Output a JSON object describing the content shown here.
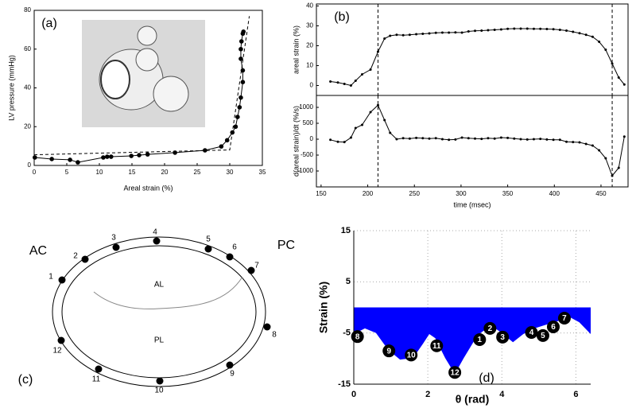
{
  "chart_data": [
    {
      "type": "line",
      "panel_label": "(a)",
      "xlabel": "Areal strain (%)",
      "ylabel": "LV pressure (mmHg)",
      "xlim": [
        0,
        35
      ],
      "xticks": [
        0,
        5,
        10,
        15,
        20,
        25,
        30,
        35
      ],
      "ylim": [
        0,
        80
      ],
      "yticks": [
        0,
        20,
        40,
        60,
        80
      ],
      "series": [
        {
          "color": "#000000",
          "marker": true,
          "x": [
            0.1,
            2.7,
            5.5,
            6.7,
            10.6,
            11.2,
            11.8,
            14.9,
            16.1,
            17.4,
            21.6,
            26.2,
            28.7,
            29.6,
            30.4,
            30.9,
            31.2,
            31.5,
            31.7,
            32,
            32,
            31.7,
            31.7,
            31.8,
            32,
            32.1
          ],
          "values": [
            4.1,
            3.3,
            2.9,
            1.6,
            4.1,
            4.5,
            4.5,
            4.9,
            5.3,
            5.7,
            6.6,
            7.8,
            9.8,
            13,
            17,
            20,
            25,
            30,
            35,
            43,
            49,
            55,
            60,
            64,
            68,
            69
          ]
        },
        {
          "color": "#000000",
          "dash": true,
          "x": [
            0,
            30,
            33
          ],
          "values": [
            5.5,
            8,
            77
          ]
        }
      ]
    },
    {
      "type": "line",
      "panel_label": "(b)",
      "ylabel": "areal strain (%)",
      "xlim": [
        145,
        479
      ],
      "ylim": [
        -5,
        41
      ],
      "yticks": [
        0,
        10,
        20,
        30,
        40
      ],
      "vlines": [
        211,
        462
      ],
      "series": [
        {
          "color": "#000000",
          "marker": true,
          "x": [
            160,
            168,
            175,
            182,
            187,
            194,
            203,
            211,
            218,
            224,
            231,
            238,
            245,
            252,
            259,
            266,
            273,
            280,
            287,
            294,
            301,
            308,
            315,
            322,
            329,
            336,
            343,
            350,
            357,
            364,
            371,
            378,
            385,
            392,
            399,
            406,
            413,
            420,
            427,
            434,
            441,
            448,
            455,
            462,
            469,
            475
          ],
          "values": [
            2,
            1.5,
            0.8,
            0,
            2.4,
            5.6,
            8,
            17,
            23.6,
            25,
            25.5,
            25.3,
            25.5,
            25.8,
            26,
            26.2,
            26.5,
            26.6,
            26.6,
            26.7,
            26.6,
            27.2,
            27.5,
            27.6,
            27.8,
            28,
            28.2,
            28.5,
            28.6,
            28.6,
            28.6,
            28.5,
            28.5,
            28.4,
            28.3,
            28,
            27.6,
            27,
            26.3,
            25.5,
            24.5,
            22,
            18,
            11,
            4,
            0.5
          ]
        }
      ]
    },
    {
      "type": "line",
      "xlabel": "time (msec)",
      "ylabel": "d(areal strain)/dt (%/s)",
      "xlim": [
        145,
        479
      ],
      "xticks": [
        150,
        200,
        250,
        300,
        350,
        400,
        450
      ],
      "ylim": [
        -1500,
        1375
      ],
      "yticks": [
        -1000,
        -500,
        0,
        500,
        1000
      ],
      "vlines": [
        211,
        462
      ],
      "series": [
        {
          "color": "#000000",
          "marker": true,
          "x": [
            160,
            168,
            175,
            182,
            187,
            194,
            203,
            211,
            218,
            224,
            231,
            238,
            245,
            252,
            259,
            266,
            273,
            280,
            287,
            294,
            301,
            308,
            315,
            322,
            329,
            336,
            343,
            350,
            357,
            364,
            371,
            378,
            385,
            392,
            399,
            406,
            413,
            420,
            427,
            434,
            441,
            448,
            455,
            462,
            469,
            475
          ],
          "values": [
            -20,
            -80,
            -90,
            50,
            350,
            450,
            850,
            1070,
            600,
            200,
            0,
            30,
            20,
            40,
            30,
            20,
            30,
            0,
            -20,
            -10,
            50,
            30,
            20,
            10,
            30,
            20,
            50,
            40,
            20,
            0,
            -10,
            0,
            10,
            -10,
            -20,
            -20,
            -80,
            -90,
            -100,
            -150,
            -200,
            -350,
            -600,
            -1150,
            -900,
            80
          ]
        }
      ]
    },
    {
      "type": "area",
      "panel_label": "(d)",
      "xlabel": "θ (rad)",
      "ylabel": "Strain (%)",
      "xlim": [
        0,
        6.4
      ],
      "xticks": [
        0,
        2,
        4,
        6
      ],
      "ylim": [
        -15,
        15
      ],
      "yticks": [
        -15,
        -5,
        5,
        15
      ],
      "grid": true,
      "series": [
        {
          "color": "#0000ff",
          "x": [
            0,
            0.3,
            0.6,
            0.93,
            1.25,
            1.6,
            1.87,
            2.04,
            2.2,
            2.47,
            2.73,
            2.97,
            3.23,
            3.44,
            3.72,
            3.98,
            4.3,
            4.58,
            4.88,
            5.23,
            5.55,
            5.81,
            6.09,
            6.4
          ],
          "values": [
            -5.2,
            -4.1,
            -5,
            -8.3,
            -10.2,
            -9.9,
            -7.1,
            -5.2,
            -6,
            -9.9,
            -13,
            -9.9,
            -6.8,
            -4.9,
            -3.6,
            -4.9,
            -6.8,
            -5.2,
            -4.1,
            -3.3,
            -2.6,
            -1.8,
            -2.9,
            -5.2
          ]
        }
      ],
      "points": {
        "labels": [
          "8",
          "9",
          "10",
          "11",
          "12",
          "1",
          "2",
          "3",
          "4",
          "5",
          "6",
          "7"
        ],
        "x": [
          0.1,
          0.95,
          1.55,
          2.24,
          2.73,
          3.4,
          3.68,
          4.02,
          4.8,
          5.11,
          5.39,
          5.69
        ],
        "values": [
          -5.7,
          -8.5,
          -9.3,
          -7.5,
          -12.7,
          -6.3,
          -4.1,
          -5.8,
          -4.9,
          -5.5,
          -3.8,
          -2.1
        ]
      }
    }
  ],
  "diagram": {
    "panel_label": "(c)",
    "regions": [
      "AC",
      "PC",
      "AL",
      "PL"
    ],
    "markers": [
      "1",
      "2",
      "3",
      "4",
      "5",
      "6",
      "7",
      "8",
      "9",
      "10",
      "11",
      "12"
    ]
  }
}
